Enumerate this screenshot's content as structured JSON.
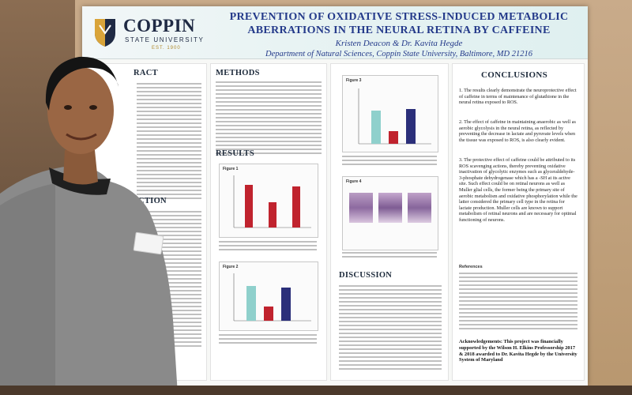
{
  "poster": {
    "logo": {
      "name": "COPPIN",
      "sub": "STATE UNIVERSITY",
      "est": "EST. 1900"
    },
    "title": "PREVENTION OF OXIDATIVE STRESS-INDUCED METABOLIC ABERRATIONS IN THE NEURAL RETINA BY CAFFEINE",
    "authors": "Kristen Deacon & Dr. Kavita Hegde",
    "department": "Department of Natural Sciences, Coppin State University, Baltimore, MD 21216",
    "sections": {
      "abstract": "RACT",
      "methods": "METHODS",
      "results": "RESULTS",
      "discussion": "DISCUSSION",
      "conclusions": "CONCLUSIONS",
      "introduction_fragment": "CTION"
    },
    "figures": {
      "fig1": "Figure 1",
      "fig2": "Figure 2",
      "fig3": "Figure 3",
      "fig4": "Figure 4"
    },
    "conclusions": [
      "The results clearly demonstrate the neuroprotective effect of caffeine in terms of maintenance of glutathione in the neural retina exposed to ROS.",
      "The effect of caffeine in maintaining anaerobic as well as aerobic glycolysis in the neural retina, as reflected by preventing the decrease in lactate and pyruvate levels when the tissue was exposed to ROS, is also clearly evident.",
      "The protective effect of caffeine could be attributed to its ROS scavenging actions, thereby preventing oxidative inactivation of glycolytic enzymes such as glyceraldehyde-3-phosphate dehydrogenase which has a -SH at its active site. Such effect could be on retinal neurons as well as Muller glial cells, the former being the primary site of aerobic metabolism and oxidative phosphorylation while the latter considered the primary cell type in the retina for lactate production. Muller cells are known to support metabolism of retinal neurons and are necessary for optimal functioning of neurons."
    ],
    "references_label": "References",
    "acknowledgement": "Acknowledgements: This project was financially supported by the Wilson H. Elkins Professorship 2017 & 2018 awarded to Dr. Kavita Hegde by the University System of Maryland"
  },
  "colors": {
    "title_blue": "#243a8a",
    "bar_teal": "#8fd0cc",
    "bar_red": "#c0232e",
    "bar_navy": "#2b2f7a"
  }
}
